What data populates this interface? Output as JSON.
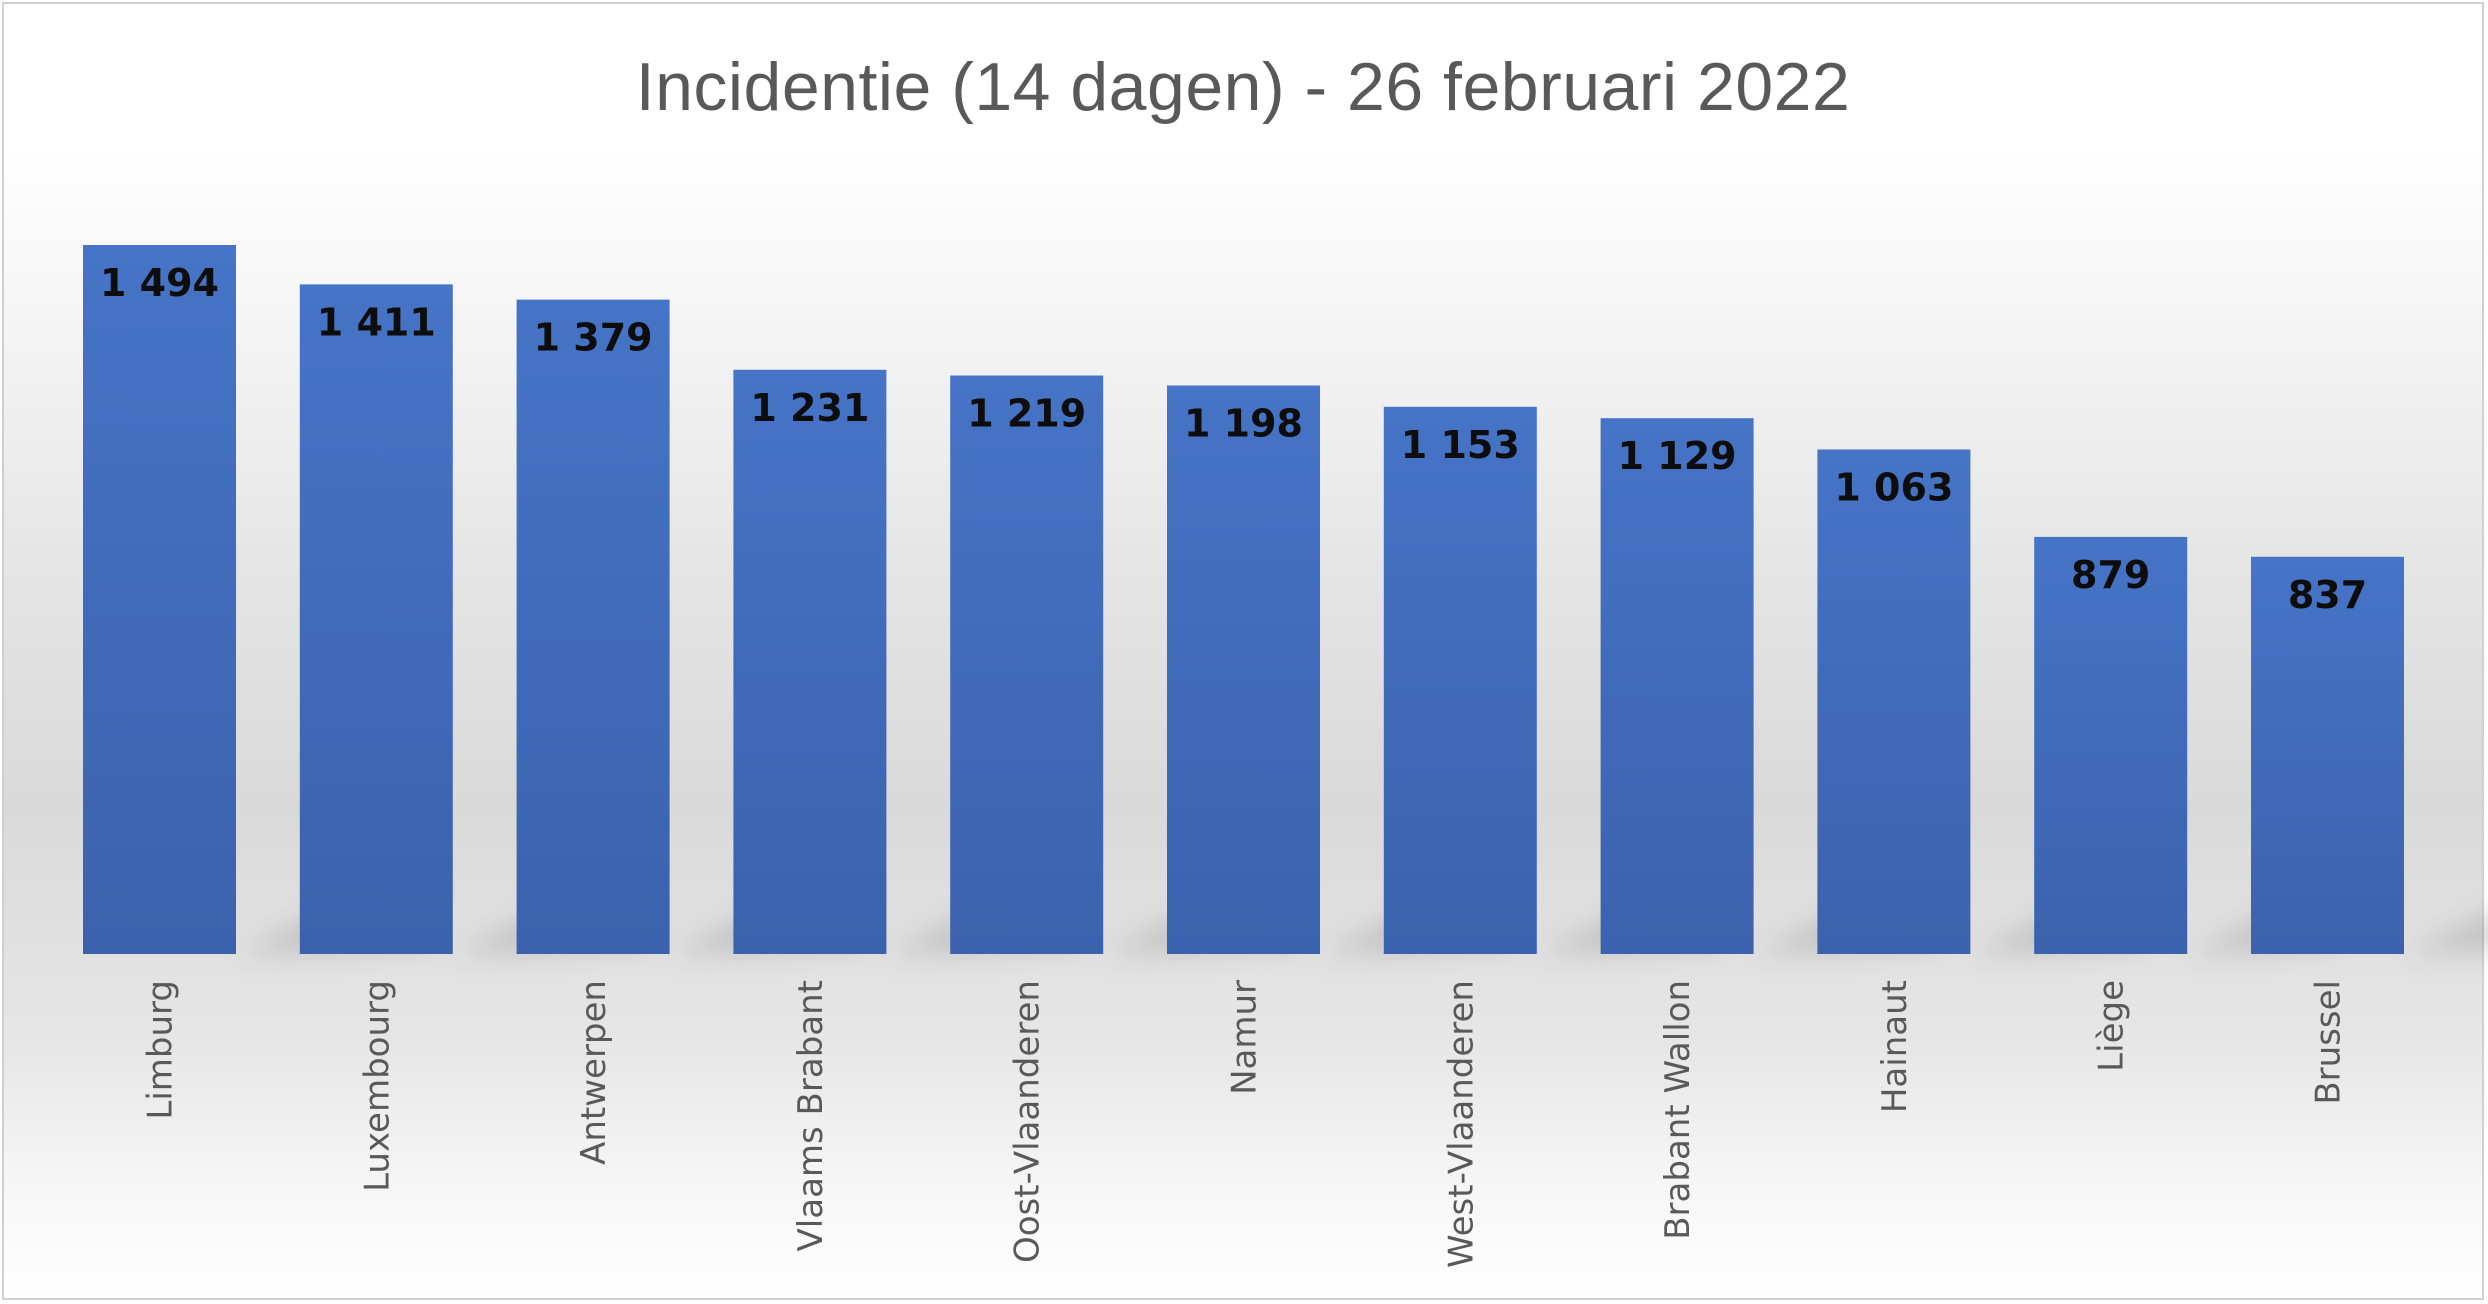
{
  "chart_data": {
    "type": "bar",
    "title": "Incidentie (14 dagen) - 26 februari 2022",
    "xlabel": "",
    "ylabel": "",
    "categories": [
      "Limburg",
      "Luxembourg",
      "Antwerpen",
      "Vlaams Brabant",
      "Oost-Vlaanderen",
      "Namur",
      "West-Vlaanderen",
      "Brabant Wallon",
      "Hainaut",
      "Liège",
      "Brussel"
    ],
    "values": [
      1494,
      1411,
      1379,
      1231,
      1219,
      1198,
      1153,
      1129,
      1063,
      879,
      837
    ],
    "data_labels": [
      "1 494",
      "1 411",
      "1 379",
      "1 231",
      "1 219",
      "1 198",
      "1 153",
      "1 129",
      "1 063",
      "879",
      "837"
    ],
    "ylim": [
      0,
      1494
    ],
    "grid": false,
    "legend": "none",
    "bar_color": "#4472c4"
  }
}
